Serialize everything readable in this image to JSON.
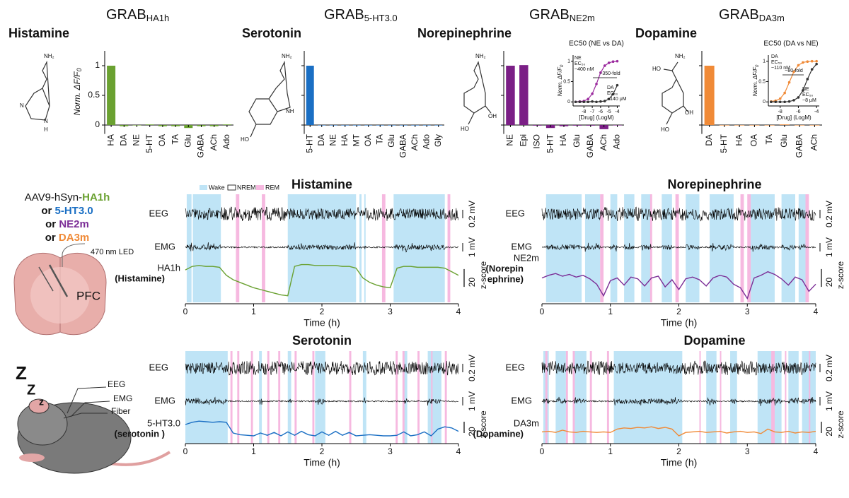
{
  "schematic": {
    "virus": [
      {
        "pre": "AAV9-hSyn-",
        "name": "HA1h"
      },
      {
        "pre": "or ",
        "name": "5-HT3.0"
      },
      {
        "pre": "or ",
        "name": "NE2m"
      },
      {
        "pre": "or ",
        "name": "DA3m"
      }
    ],
    "led": "470 nm LED",
    "region": "PFC",
    "mouse_labels": [
      "EEG",
      "EMG",
      "Fiber"
    ],
    "sleep": [
      "Z",
      "Z",
      "z"
    ]
  },
  "chemistry": [
    [
      "NH₂",
      "N",
      "N",
      "H"
    ],
    [
      "NH₂",
      "NH",
      "HO"
    ],
    [
      "NH₂",
      "HO",
      "OH"
    ],
    [
      "NH₂",
      "HO",
      "HO",
      "OH"
    ]
  ],
  "chart_data": [
    {
      "type": "bar",
      "title": "Histamine",
      "sensor": "GRAB",
      "sensor_sub": "HA1h",
      "ylabel": "Norm. ΔF/F",
      "ylabel_sub": "0",
      "categories": [
        "HA",
        "DA",
        "NE",
        "5-HT",
        "OA",
        "TA",
        "Glu",
        "GABA",
        "ACh",
        "Ado"
      ],
      "values": [
        1,
        -0.02,
        0,
        0.01,
        -0.02,
        -0.02,
        -0.05,
        -0.02,
        -0.02,
        0.01
      ],
      "color": "#6aa131",
      "ylim": [
        -0.15,
        1.25
      ],
      "yticks": [
        0,
        0.5,
        1
      ],
      "tick_labels": true
    },
    {
      "type": "bar",
      "title": "Serotonin",
      "sensor": "GRAB",
      "sensor_sub": "5-HT3.0",
      "categories": [
        "5-HT",
        "DA",
        "NE",
        "HA",
        "MT",
        "OA",
        "TA",
        "Glu",
        "GABA",
        "ACh",
        "Ado",
        "Gly"
      ],
      "values": [
        1,
        0,
        0,
        0,
        0,
        0,
        0,
        0,
        0,
        0,
        0,
        0
      ],
      "color": "#1a6fc4",
      "ylim": [
        -0.15,
        1.25
      ],
      "yticks": [
        0,
        0.5,
        1
      ],
      "tick_labels": false
    },
    {
      "type": "bar",
      "title": "Norepinephrine",
      "sensor": "GRAB",
      "sensor_sub": "NE2m",
      "categories": [
        "NE",
        "Epi",
        "ISO",
        "5-HT",
        "HA",
        "Glu",
        "GABA",
        "ACh",
        "Ado"
      ],
      "values": [
        1,
        1.01,
        -0.01,
        -0.05,
        -0.02,
        -0.01,
        -0.01,
        -0.07,
        0
      ],
      "color": "#7b1f86",
      "ylim": [
        -0.15,
        1.25
      ],
      "yticks": [
        0,
        0.5,
        1
      ],
      "tick_labels": false
    },
    {
      "type": "bar",
      "title": "Dopamine",
      "sensor": "GRAB",
      "sensor_sub": "DA3m",
      "categories": [
        "DA",
        "5-HT",
        "HA",
        "OA",
        "TA",
        "Glu",
        "GABA",
        "ACh"
      ],
      "values": [
        1,
        0,
        0,
        0,
        0,
        0.01,
        0,
        0
      ],
      "color": "#f08a37",
      "ylim": [
        -0.15,
        1.25
      ],
      "yticks": [
        0,
        0.5,
        1
      ],
      "tick_labels": false
    },
    {
      "type": "line",
      "title": "EC50 (NE vs DA)",
      "xlabel": "[Drug] (LogM)",
      "ylabel": "Norm. ΔF/F",
      "ylabel_sub": "0",
      "x": [
        -9,
        -8.5,
        -8,
        -7.5,
        -7,
        -6.5,
        -6,
        -5.5,
        -5,
        -4.5,
        -4
      ],
      "series": [
        {
          "name": "NE",
          "color": "#9b2a9e",
          "values": [
            0,
            0.01,
            0.02,
            0.07,
            0.2,
            0.44,
            0.72,
            0.89,
            0.96,
            0.99,
            1
          ],
          "note": [
            "EC₅₀",
            "~400 nM"
          ]
        },
        {
          "name": "DA",
          "color": "#333333",
          "values": [
            0,
            0,
            0,
            0,
            0.01,
            0,
            0.01,
            0.02,
            0.07,
            0.19,
            0.41
          ],
          "note": [
            "EC₅₀",
            "~140 μM"
          ]
        }
      ],
      "fold": "~350-fold",
      "xlim": [
        -9.3,
        -3.7
      ],
      "xticks": [
        -8,
        -7,
        -6,
        -5,
        -4
      ],
      "ylim": [
        -0.1,
        1.15
      ],
      "yticks": [
        0,
        0.5,
        1
      ]
    },
    {
      "type": "line",
      "title": "EC50 (DA vs NE)",
      "xlabel": "[Drug] (LogM)",
      "ylabel": "Norm. ΔF/F",
      "ylabel_sub": "0",
      "x": [
        -9,
        -8.5,
        -8,
        -7.5,
        -7,
        -6.5,
        -6,
        -5.5,
        -5,
        -4.5,
        -4
      ],
      "series": [
        {
          "name": "DA",
          "color": "#f08a37",
          "values": [
            0.01,
            0.03,
            0.08,
            0.22,
            0.48,
            0.74,
            0.9,
            0.97,
            0.99,
            1,
            1
          ],
          "note": [
            "EC₅₀",
            "~110 nM"
          ]
        },
        {
          "name": "NE",
          "color": "#333333",
          "values": [
            0,
            0,
            0,
            0,
            0.01,
            0.04,
            0.11,
            0.28,
            0.56,
            0.8,
            0.93
          ],
          "note": [
            "EC₅₀",
            "~8 μM"
          ]
        }
      ],
      "fold": "~80-fold",
      "xlim": [
        -9.3,
        -3.7
      ],
      "xticks": [
        -8,
        -6,
        -4
      ],
      "ylim": [
        -0.1,
        1.15
      ],
      "yticks": [
        0,
        0.5,
        1
      ]
    },
    {
      "type": "timeseries",
      "title": "Histamine",
      "color": "#6aa131",
      "legend": [
        "Wake",
        "NREM",
        "REM"
      ],
      "eeg_label": "EEG",
      "emg_label": "EMG",
      "eeg_scale": "0.2 mV",
      "emg_scale": "1 mV",
      "ylabel": "z-score",
      "scalebar": 20,
      "sensor_label": [
        "HA1h",
        "(Histamine)"
      ],
      "xlabel": "Time (h)",
      "xlim": [
        0,
        4
      ],
      "xticks": [
        0,
        1,
        2,
        3,
        4
      ],
      "ylim": [
        -20,
        30
      ],
      "wake": [
        [
          0.02,
          0.09
        ],
        [
          0.11,
          0.52
        ],
        [
          1.5,
          2.5
        ],
        [
          2.55,
          2.58
        ],
        [
          2.62,
          2.64
        ],
        [
          3.05,
          3.8
        ]
      ],
      "rem": [
        [
          0.74,
          0.79
        ],
        [
          1.12,
          1.17
        ],
        [
          2.88,
          2.93
        ],
        [
          3.84,
          3.88
        ]
      ],
      "x": [
        0,
        0.1,
        0.2,
        0.3,
        0.4,
        0.5,
        0.6,
        0.7,
        0.8,
        0.9,
        1,
        1.1,
        1.2,
        1.3,
        1.4,
        1.5,
        1.6,
        1.7,
        1.8,
        1.9,
        2,
        2.1,
        2.2,
        2.3,
        2.4,
        2.5,
        2.6,
        2.7,
        2.8,
        2.9,
        3,
        3.1,
        3.2,
        3.3,
        3.4,
        3.5,
        3.6,
        3.7,
        3.8,
        3.9,
        4
      ],
      "values": [
        14,
        18,
        19,
        18,
        18,
        17,
        8,
        3,
        0,
        -3,
        -6,
        -8,
        -10,
        -12,
        -14,
        -15,
        18,
        20,
        20,
        19,
        19,
        19,
        19,
        18,
        18,
        16,
        5,
        0,
        -3,
        -5,
        -6,
        16,
        18,
        18,
        17,
        17,
        17,
        17,
        16,
        12,
        8
      ]
    },
    {
      "type": "timeseries",
      "title": "Serotonin",
      "color": "#1a6fc4",
      "eeg_label": "EEG",
      "emg_label": "EMG",
      "eeg_scale": "0.2 mV",
      "emg_scale": "1 mV",
      "ylabel": "z-score",
      "scalebar": 20,
      "sensor_label": [
        "5-HT3.0",
        "(serotonin )"
      ],
      "xlabel": "Time (h)",
      "xlim": [
        0,
        4
      ],
      "xticks": [
        0,
        1,
        2,
        3,
        4
      ],
      "ylim": [
        -20,
        30
      ],
      "wake": [
        [
          0,
          0.62
        ],
        [
          1.08,
          1.12
        ],
        [
          1.5,
          1.55
        ],
        [
          1.9,
          2.05
        ],
        [
          2.6,
          2.65
        ],
        [
          3.2,
          3.25
        ],
        [
          3.55,
          3.75
        ]
      ],
      "rem": [
        [
          0.66,
          0.69
        ],
        [
          0.76,
          0.79
        ],
        [
          0.96,
          0.99
        ],
        [
          1.2,
          1.23
        ],
        [
          1.36,
          1.39
        ],
        [
          1.6,
          1.63
        ],
        [
          1.86,
          1.89
        ],
        [
          2.4,
          2.43
        ],
        [
          3.08,
          3.11
        ],
        [
          3.18,
          3.21
        ],
        [
          3.4,
          3.43
        ],
        [
          3.6,
          3.62
        ],
        [
          3.8,
          3.83
        ]
      ],
      "x": [
        0,
        0.1,
        0.2,
        0.3,
        0.4,
        0.5,
        0.6,
        0.7,
        0.8,
        0.9,
        1,
        1.1,
        1.2,
        1.3,
        1.4,
        1.5,
        1.6,
        1.7,
        1.8,
        1.9,
        2,
        2.1,
        2.2,
        2.3,
        2.4,
        2.5,
        2.6,
        2.7,
        2.8,
        2.9,
        3,
        3.1,
        3.2,
        3.3,
        3.4,
        3.5,
        3.6,
        3.7,
        3.8,
        3.9,
        4
      ],
      "values": [
        10,
        14,
        16,
        15,
        14,
        15,
        14,
        -5,
        -8,
        -9,
        -10,
        -5,
        -9,
        -4,
        -10,
        -3,
        -9,
        -2,
        -8,
        -10,
        -3,
        -9,
        -2,
        -9,
        -4,
        -10,
        -9,
        -8,
        -9,
        -10,
        -10,
        -9,
        -3,
        -10,
        -8,
        -3,
        -10,
        2,
        6,
        4,
        -2
      ]
    },
    {
      "type": "timeseries",
      "title": "Norepinephrine",
      "color": "#7b2d96",
      "eeg_label": "EEG",
      "emg_label": "EMG",
      "eeg_scale": "0.2 mV",
      "emg_scale": "1 mV",
      "ylabel": "z-score",
      "scalebar": 20,
      "sensor_label": [
        "NE2m",
        "(Norepin",
        "ephrine)"
      ],
      "xlabel": "Time (h)",
      "xlim": [
        0,
        4
      ],
      "xticks": [
        0,
        1,
        2,
        3,
        4
      ],
      "ylim": [
        -20,
        30
      ],
      "wake": [
        [
          0.06,
          0.58
        ],
        [
          0.63,
          0.85
        ],
        [
          1,
          1.1
        ],
        [
          1.2,
          1.35
        ],
        [
          1.45,
          1.6
        ],
        [
          1.75,
          1.9
        ],
        [
          2.1,
          2.3
        ],
        [
          2.45,
          2.8
        ],
        [
          3.05,
          3.4
        ],
        [
          3.5,
          3.7
        ],
        [
          3.75,
          3.85
        ]
      ],
      "rem": [
        [
          0.85,
          0.9
        ],
        [
          1.58,
          1.61
        ],
        [
          1.95,
          2
        ],
        [
          2.9,
          2.95
        ],
        [
          3,
          3.05
        ],
        [
          3.85,
          3.9
        ]
      ],
      "x": [
        0,
        0.1,
        0.2,
        0.3,
        0.4,
        0.5,
        0.6,
        0.7,
        0.8,
        0.9,
        1,
        1.1,
        1.2,
        1.3,
        1.4,
        1.5,
        1.6,
        1.7,
        1.8,
        1.9,
        2,
        2.1,
        2.2,
        2.3,
        2.4,
        2.5,
        2.6,
        2.7,
        2.8,
        2.9,
        3,
        3.1,
        3.2,
        3.3,
        3.4,
        3.5,
        3.6,
        3.7,
        3.8,
        3.9,
        4
      ],
      "values": [
        5,
        8,
        10,
        7,
        9,
        6,
        8,
        4,
        -2,
        -15,
        2,
        5,
        -3,
        6,
        4,
        -4,
        5,
        7,
        -5,
        3,
        -8,
        4,
        6,
        3,
        -4,
        5,
        8,
        6,
        -2,
        -6,
        -18,
        5,
        8,
        12,
        9,
        4,
        -3,
        6,
        3,
        -10,
        -2
      ]
    },
    {
      "type": "timeseries",
      "title": "Dopamine",
      "color": "#f08a37",
      "eeg_label": "EEG",
      "emg_label": "EMG",
      "eeg_scale": "0.2 mV",
      "emg_scale": "1 mV",
      "ylabel": "z-score",
      "scalebar": 20,
      "sensor_label": [
        "DA3m",
        "(Dopamine)"
      ],
      "xlabel": "Time (h)",
      "xlim": [
        0,
        4
      ],
      "xticks": [
        0,
        1,
        2,
        3,
        4
      ],
      "ylim": [
        -20,
        30
      ],
      "wake": [
        [
          0.02,
          0.1
        ],
        [
          0.2,
          0.35
        ],
        [
          0.45,
          0.65
        ],
        [
          1.05,
          2.05
        ],
        [
          2.4,
          2.55
        ],
        [
          2.75,
          2.85
        ],
        [
          3.15,
          3.5
        ],
        [
          3.6,
          3.75
        ],
        [
          3.8,
          4
        ]
      ],
      "rem": [
        [
          0.05,
          0.08
        ],
        [
          0.35,
          0.38
        ],
        [
          0.45,
          0.48
        ],
        [
          0.7,
          0.73
        ],
        [
          0.95,
          0.98
        ],
        [
          2.3,
          2.32
        ],
        [
          2.6,
          2.62
        ],
        [
          3.35,
          3.4
        ],
        [
          3.55,
          3.57
        ],
        [
          3.9,
          3.92
        ]
      ],
      "x": [
        0,
        0.1,
        0.2,
        0.3,
        0.4,
        0.5,
        0.6,
        0.7,
        0.8,
        0.9,
        1,
        1.1,
        1.2,
        1.3,
        1.4,
        1.5,
        1.6,
        1.7,
        1.8,
        1.9,
        2,
        2.1,
        2.2,
        2.3,
        2.4,
        2.5,
        2.6,
        2.7,
        2.8,
        2.9,
        3,
        3.1,
        3.2,
        3.3,
        3.4,
        3.5,
        3.6,
        3.7,
        3.8,
        3.9,
        4
      ],
      "values": [
        -3,
        -2,
        -4,
        0,
        -3,
        -4,
        -2,
        -3,
        -4,
        -3,
        -4,
        2,
        4,
        3,
        5,
        4,
        6,
        3,
        5,
        2,
        -10,
        -4,
        -3,
        -2,
        -4,
        -3,
        -2,
        -5,
        -3,
        -2,
        -4,
        -3,
        -6,
        2,
        -3,
        -4,
        -2,
        -5,
        -3,
        -4,
        -2
      ]
    }
  ]
}
